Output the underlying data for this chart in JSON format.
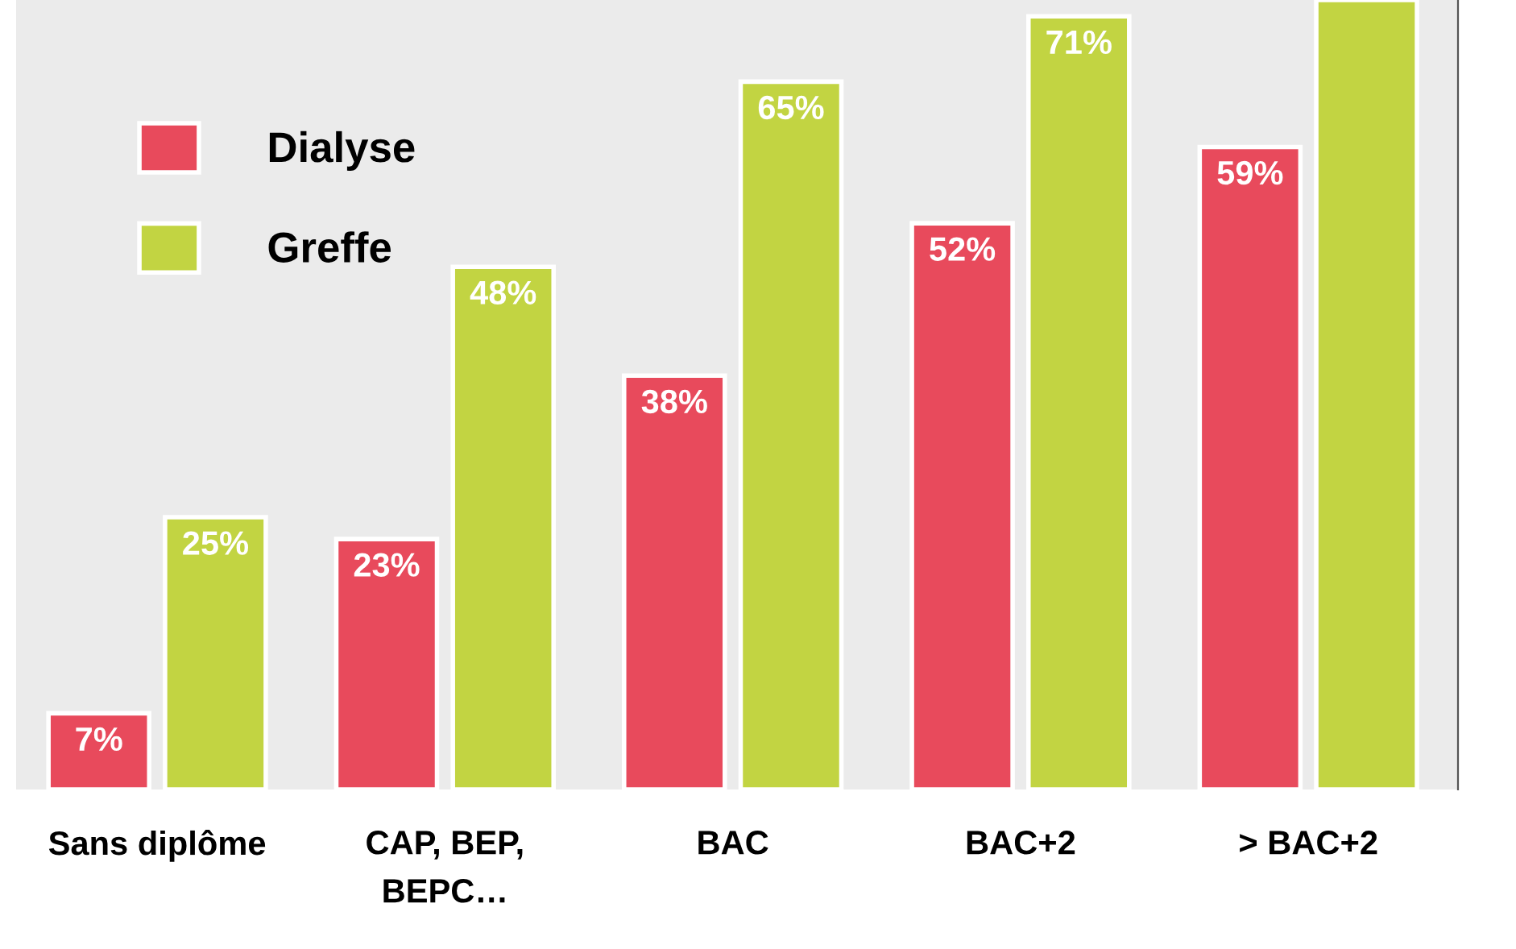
{
  "chart_data": {
    "type": "bar",
    "categories": [
      "Sans diplôme",
      "CAP, BEP,\nBEPC…",
      "BAC",
      "BAC+2",
      "> BAC+2"
    ],
    "series": [
      {
        "name": "Dialyse",
        "color": "#e84a5c",
        "values": [
          7,
          23,
          38,
          52,
          59
        ],
        "value_labels": [
          "7%",
          "23%",
          "38%",
          "52%",
          "59%"
        ]
      },
      {
        "name": "Greffe",
        "color": "#c2d442",
        "values": [
          25,
          48,
          65,
          71,
          72.5
        ],
        "value_labels": [
          "25%",
          "48%",
          "65%",
          "71%",
          null
        ]
      }
    ],
    "ylim": [
      0,
      72.5
    ],
    "legend": "top left",
    "grid": false
  }
}
